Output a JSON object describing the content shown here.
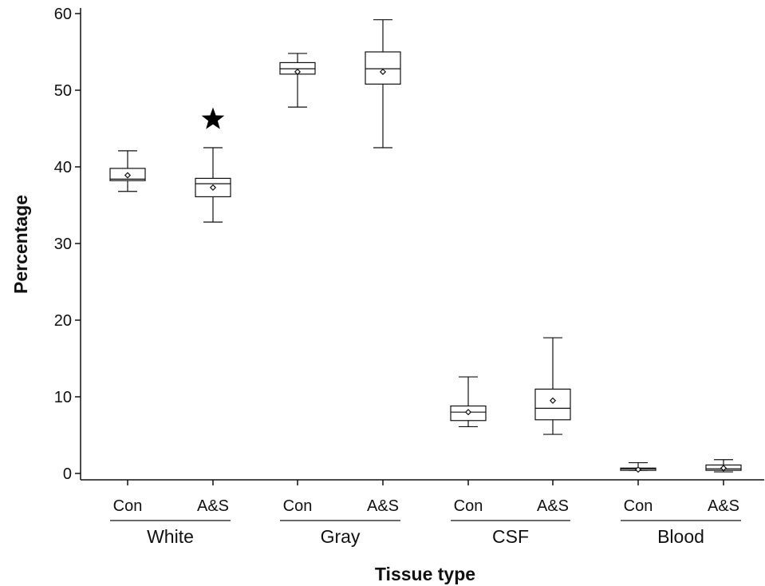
{
  "chart_data": {
    "type": "box",
    "xlabel": "Tissue type",
    "ylabel": "Percentage",
    "ylim": [
      0,
      60
    ],
    "yticks": [
      0,
      10,
      20,
      30,
      40,
      50,
      60
    ],
    "grid": false,
    "legend": "none",
    "groups": [
      {
        "label": "White",
        "boxes": [
          {
            "category": "Con",
            "min": 36.8,
            "q1": 38.2,
            "median": 38.4,
            "q3": 39.8,
            "max": 42.1,
            "mean": 38.9
          },
          {
            "category": "A&S",
            "min": 32.8,
            "q1": 36.1,
            "median": 37.8,
            "q3": 38.5,
            "max": 42.5,
            "mean": 37.3
          }
        ]
      },
      {
        "label": "Gray",
        "boxes": [
          {
            "category": "Con",
            "min": 47.8,
            "q1": 52.1,
            "median": 52.8,
            "q3": 53.6,
            "max": 54.8,
            "mean": 52.4
          },
          {
            "category": "A&S",
            "min": 42.5,
            "q1": 50.8,
            "median": 52.8,
            "q3": 55.0,
            "max": 59.2,
            "mean": 52.4
          }
        ]
      },
      {
        "label": "CSF",
        "boxes": [
          {
            "category": "Con",
            "min": 6.1,
            "q1": 6.9,
            "median": 8.0,
            "q3": 8.8,
            "max": 12.6,
            "mean": 8.0
          },
          {
            "category": "A&S",
            "min": 5.1,
            "q1": 7.0,
            "median": 8.5,
            "q3": 11.0,
            "max": 17.7,
            "mean": 9.5
          }
        ]
      },
      {
        "label": "Blood",
        "boxes": [
          {
            "category": "Con",
            "min": 0.4,
            "q1": 0.4,
            "median": 0.6,
            "q3": 0.7,
            "max": 1.4,
            "mean": 0.5
          },
          {
            "category": "A&S",
            "min": 0.2,
            "q1": 0.4,
            "median": 0.6,
            "q3": 1.1,
            "max": 1.8,
            "mean": 0.7
          }
        ]
      }
    ],
    "annotations": [
      {
        "symbol": "★",
        "group": "White",
        "category": "A&S",
        "y": 46.2
      }
    ]
  }
}
